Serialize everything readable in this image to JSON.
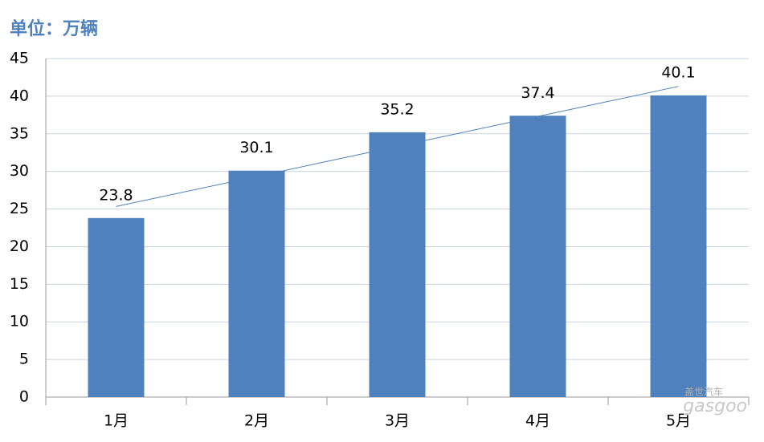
{
  "chart_data": {
    "type": "bar",
    "title": "单位：万辆",
    "categories": [
      "1月",
      "2月",
      "3月",
      "4月",
      "5月"
    ],
    "values": [
      23.8,
      30.1,
      35.2,
      37.4,
      40.1
    ],
    "color": "#4f81bd",
    "trendline": "linear",
    "trendline_color": "#4f81bd",
    "ylim": [
      0,
      45
    ],
    "yticks": [
      0,
      5,
      10,
      15,
      20,
      25,
      30,
      35,
      40,
      45
    ],
    "grid": true,
    "watermark": [
      "盖世汽车",
      "gasgoo"
    ]
  }
}
